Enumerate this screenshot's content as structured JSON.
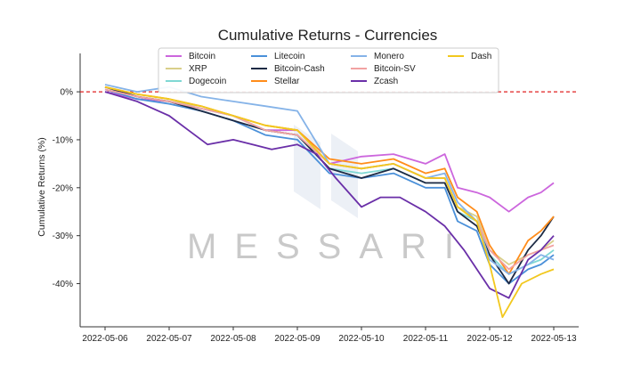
{
  "chart_data": {
    "type": "line",
    "title": "Cumulative Returns - Currencies",
    "xlabel": "",
    "ylabel": "Cumulative Returns (%)",
    "x_ticks": [
      "2022-05-06",
      "2022-05-07",
      "2022-05-08",
      "2022-05-09",
      "2022-05-10",
      "2022-05-11",
      "2022-05-12",
      "2022-05-13"
    ],
    "y_ticks": [
      "0%",
      "-10%",
      "-20%",
      "-30%",
      "-40%"
    ],
    "y_tick_values": [
      0,
      -10,
      -20,
      -30,
      -40
    ],
    "xlim_days": [
      0,
      7
    ],
    "ylim": [
      -49,
      8
    ],
    "reference_line": {
      "y": 0,
      "style": "dashed",
      "color": "#e02020"
    },
    "grid": false,
    "legend_position": "top",
    "legend_columns": 4,
    "watermark": "MESSARI",
    "series": [
      {
        "name": "Bitcoin",
        "color": "#cc66dd",
        "values": [
          [
            0,
            0
          ],
          [
            0.5,
            -1.5
          ],
          [
            1,
            -2
          ],
          [
            1.5,
            -3.5
          ],
          [
            2,
            -5
          ],
          [
            2.5,
            -8
          ],
          [
            3,
            -8
          ],
          [
            3.5,
            -15
          ],
          [
            4,
            -13.5
          ],
          [
            4.5,
            -13
          ],
          [
            5,
            -15
          ],
          [
            5.3,
            -13
          ],
          [
            5.5,
            -20
          ],
          [
            5.8,
            -21
          ],
          [
            6,
            -22
          ],
          [
            6.3,
            -25
          ],
          [
            6.6,
            -22
          ],
          [
            6.8,
            -21
          ],
          [
            7,
            -19
          ]
        ]
      },
      {
        "name": "XRP",
        "color": "#d9cf8a",
        "values": [
          [
            0,
            1
          ],
          [
            0.5,
            -1
          ],
          [
            1,
            -2
          ],
          [
            1.5,
            -3
          ],
          [
            2,
            -5
          ],
          [
            2.5,
            -7
          ],
          [
            3,
            -8
          ],
          [
            3.5,
            -15
          ],
          [
            4,
            -16
          ],
          [
            4.5,
            -15
          ],
          [
            5,
            -18
          ],
          [
            5.3,
            -18
          ],
          [
            5.5,
            -24
          ],
          [
            5.8,
            -26
          ],
          [
            6,
            -33
          ],
          [
            6.3,
            -36
          ],
          [
            6.6,
            -34
          ],
          [
            6.8,
            -33
          ],
          [
            7,
            -31
          ]
        ]
      },
      {
        "name": "Dogecoin",
        "color": "#7fd8d4",
        "values": [
          [
            0,
            1
          ],
          [
            0.5,
            -1
          ],
          [
            1,
            -2
          ],
          [
            1.5,
            -3.5
          ],
          [
            2,
            -5
          ],
          [
            2.5,
            -8
          ],
          [
            3,
            -9
          ],
          [
            3.5,
            -16
          ],
          [
            4,
            -17
          ],
          [
            4.5,
            -16
          ],
          [
            5,
            -19
          ],
          [
            5.3,
            -19
          ],
          [
            5.5,
            -25
          ],
          [
            5.8,
            -27
          ],
          [
            6,
            -34
          ],
          [
            6.3,
            -38
          ],
          [
            6.6,
            -36
          ],
          [
            6.8,
            -35
          ],
          [
            7,
            -33
          ]
        ]
      },
      {
        "name": "Litecoin",
        "color": "#4a90d9",
        "values": [
          [
            0,
            0.5
          ],
          [
            0.5,
            -1.5
          ],
          [
            1,
            -2.5
          ],
          [
            1.5,
            -4
          ],
          [
            2,
            -6
          ],
          [
            2.5,
            -9
          ],
          [
            3,
            -10
          ],
          [
            3.5,
            -17
          ],
          [
            4,
            -18
          ],
          [
            4.5,
            -17
          ],
          [
            5,
            -20
          ],
          [
            5.3,
            -20
          ],
          [
            5.5,
            -27
          ],
          [
            5.8,
            -29
          ],
          [
            6,
            -36
          ],
          [
            6.3,
            -40
          ],
          [
            6.6,
            -37
          ],
          [
            6.8,
            -36
          ],
          [
            7,
            -34
          ]
        ]
      },
      {
        "name": "Bitcoin-Cash",
        "color": "#1d2a44",
        "values": [
          [
            0,
            1
          ],
          [
            0.5,
            -1
          ],
          [
            1,
            -2
          ],
          [
            1.5,
            -4
          ],
          [
            2,
            -6
          ],
          [
            2.5,
            -8
          ],
          [
            3,
            -9
          ],
          [
            3.5,
            -16
          ],
          [
            4,
            -18
          ],
          [
            4.5,
            -16
          ],
          [
            5,
            -19
          ],
          [
            5.3,
            -19
          ],
          [
            5.5,
            -25
          ],
          [
            5.8,
            -28
          ],
          [
            6,
            -34
          ],
          [
            6.3,
            -40
          ],
          [
            6.6,
            -33
          ],
          [
            6.8,
            -30
          ],
          [
            7,
            -26
          ]
        ]
      },
      {
        "name": "Stellar",
        "color": "#ff8c1a",
        "values": [
          [
            0,
            1
          ],
          [
            0.5,
            -0.5
          ],
          [
            1,
            -1.5
          ],
          [
            1.5,
            -3
          ],
          [
            2,
            -5
          ],
          [
            2.5,
            -7
          ],
          [
            3,
            -8
          ],
          [
            3.5,
            -14
          ],
          [
            4,
            -15
          ],
          [
            4.5,
            -14
          ],
          [
            5,
            -17
          ],
          [
            5.3,
            -16
          ],
          [
            5.5,
            -22
          ],
          [
            5.8,
            -25
          ],
          [
            6,
            -32
          ],
          [
            6.3,
            -38
          ],
          [
            6.6,
            -31
          ],
          [
            6.8,
            -29
          ],
          [
            7,
            -26
          ]
        ]
      },
      {
        "name": "Monero",
        "color": "#85b3e8",
        "values": [
          [
            0,
            1.5
          ],
          [
            0.5,
            0
          ],
          [
            1,
            1
          ],
          [
            1.5,
            -1
          ],
          [
            2,
            -2
          ],
          [
            2.5,
            -3
          ],
          [
            3,
            -4
          ],
          [
            3.5,
            -15
          ],
          [
            4,
            -16
          ],
          [
            4.5,
            -15
          ],
          [
            5,
            -18
          ],
          [
            5.3,
            -17
          ],
          [
            5.5,
            -23
          ],
          [
            5.8,
            -27
          ],
          [
            6,
            -35
          ],
          [
            6.3,
            -38
          ],
          [
            6.6,
            -36
          ],
          [
            6.8,
            -34
          ],
          [
            7,
            -35
          ]
        ]
      },
      {
        "name": "Bitcoin-SV",
        "color": "#f2a2a2",
        "values": [
          [
            0,
            0.5
          ],
          [
            0.5,
            -1
          ],
          [
            1,
            -2
          ],
          [
            1.5,
            -3.5
          ],
          [
            2,
            -5
          ],
          [
            2.5,
            -8
          ],
          [
            3,
            -9
          ],
          [
            3.5,
            -15
          ],
          [
            4,
            -16
          ],
          [
            4.5,
            -15
          ],
          [
            5,
            -18
          ],
          [
            5.3,
            -18
          ],
          [
            5.5,
            -24
          ],
          [
            5.8,
            -27
          ],
          [
            6,
            -33
          ],
          [
            6.3,
            -37
          ],
          [
            6.6,
            -34
          ],
          [
            6.8,
            -33
          ],
          [
            7,
            -32
          ]
        ]
      },
      {
        "name": "Zcash",
        "color": "#6a2fa8",
        "values": [
          [
            0,
            0
          ],
          [
            0.5,
            -2
          ],
          [
            1,
            -5
          ],
          [
            1.3,
            -8
          ],
          [
            1.6,
            -11
          ],
          [
            2,
            -10
          ],
          [
            2.3,
            -11
          ],
          [
            2.6,
            -12
          ],
          [
            3,
            -11
          ],
          [
            3.3,
            -13
          ],
          [
            3.6,
            -18
          ],
          [
            4,
            -24
          ],
          [
            4.3,
            -22
          ],
          [
            4.6,
            -22
          ],
          [
            5,
            -25
          ],
          [
            5.3,
            -28
          ],
          [
            5.6,
            -33
          ],
          [
            6,
            -41
          ],
          [
            6.3,
            -43
          ],
          [
            6.6,
            -35
          ],
          [
            6.8,
            -33
          ],
          [
            7,
            -30
          ]
        ]
      },
      {
        "name": "Dash",
        "color": "#f2c81e",
        "values": [
          [
            0,
            1
          ],
          [
            0.5,
            -0.5
          ],
          [
            1,
            -1.5
          ],
          [
            1.5,
            -3
          ],
          [
            2,
            -5
          ],
          [
            2.5,
            -7
          ],
          [
            3,
            -8
          ],
          [
            3.5,
            -15
          ],
          [
            4,
            -16
          ],
          [
            4.5,
            -15
          ],
          [
            5,
            -18
          ],
          [
            5.3,
            -18
          ],
          [
            5.5,
            -24
          ],
          [
            5.8,
            -27
          ],
          [
            6,
            -36
          ],
          [
            6.2,
            -47
          ],
          [
            6.5,
            -40
          ],
          [
            6.8,
            -38
          ],
          [
            7,
            -37
          ]
        ]
      }
    ]
  }
}
